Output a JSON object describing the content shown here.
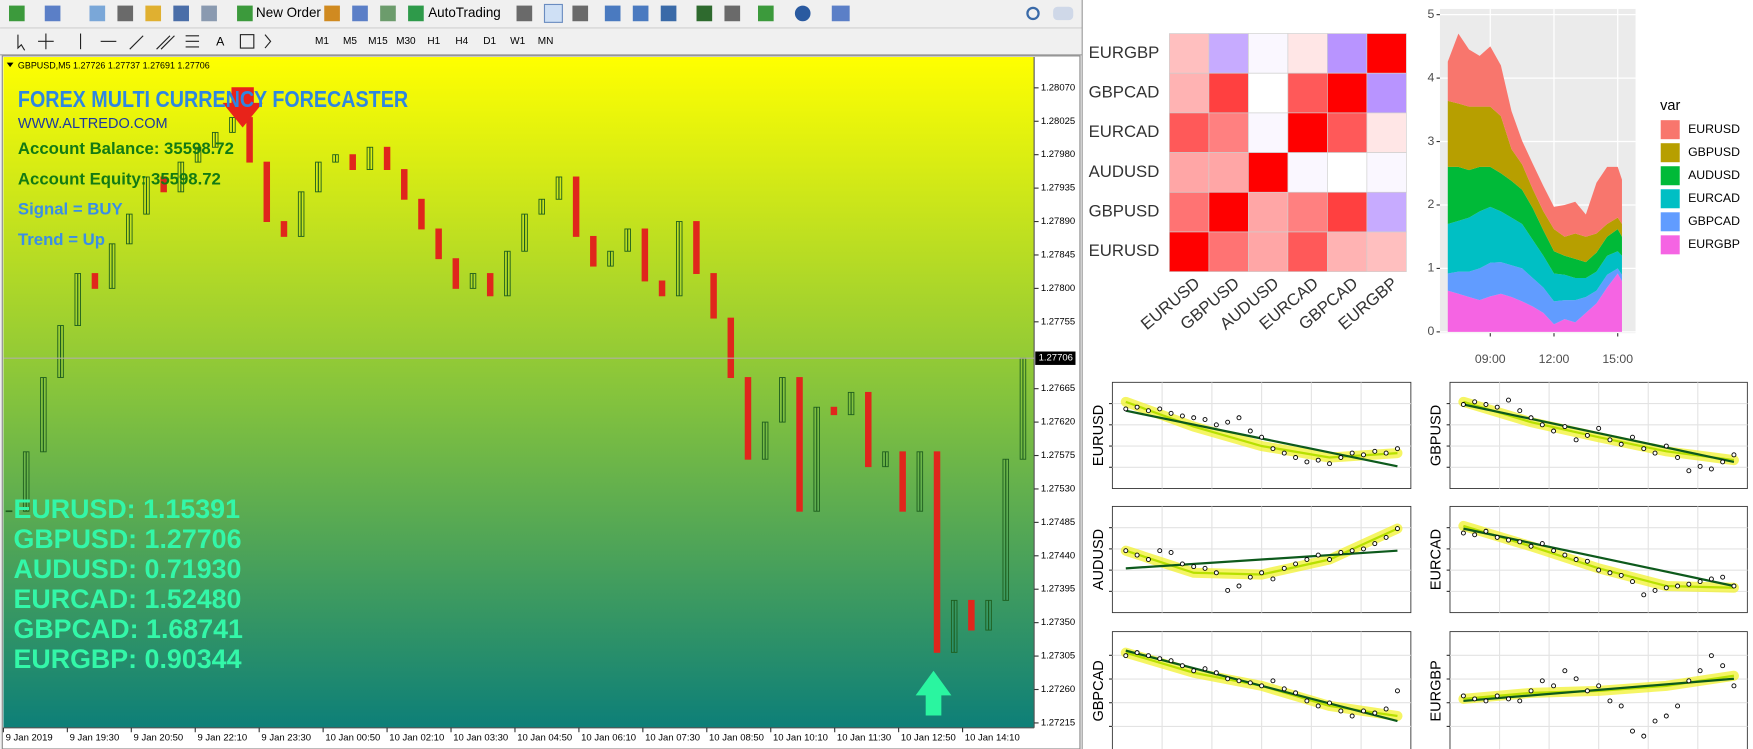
{
  "toolbar": {
    "buttons": [
      "New Order",
      "AutoTrading"
    ],
    "timeframes": [
      "M1",
      "M5",
      "M15",
      "M30",
      "H1",
      "H4",
      "D1",
      "W1",
      "MN"
    ]
  },
  "chart_data": [
    {
      "type": "candlestick",
      "header": "GBPUSD,M5  1.27726 1.27737 1.27691 1.27706",
      "title": "FOREX MULTI CURRENCY FORECASTER",
      "subtitle": "WWW.ALTREDO.COM",
      "annotations": [
        "Account Balance: 35598.72",
        "Account Equity: 35598.72",
        "Signal  = BUY",
        "Trend = Up"
      ],
      "quotes": [
        "EURUSD: 1.15391",
        "GBPUSD: 1.27706",
        "AUDUSD: 0.71930",
        "EURCAD: 1.52480",
        "GBPCAD: 1.68741",
        "EURGBP: 0.90344"
      ],
      "closes": [
        1.275,
        1.2758,
        1.2768,
        1.2775,
        1.2782,
        1.278,
        1.2786,
        1.279,
        1.2795,
        1.2793,
        1.2797,
        1.2799,
        1.2801,
        1.2803,
        1.2797,
        1.2789,
        1.2787,
        1.2793,
        1.2797,
        1.2798,
        1.2796,
        1.2799,
        1.2796,
        1.2792,
        1.2788,
        1.2784,
        1.278,
        1.2782,
        1.2779,
        1.2785,
        1.279,
        1.2792,
        1.2795,
        1.2787,
        1.2783,
        1.2785,
        1.2788,
        1.2781,
        1.2779,
        1.2789,
        1.2782,
        1.2776,
        1.2768,
        1.2757,
        1.2762,
        1.2768,
        1.275,
        1.2764,
        1.2763,
        1.2766,
        1.2756,
        1.2758,
        1.275,
        1.2758,
        1.2731,
        1.2738,
        1.2734,
        1.2738,
        1.2757,
        1.27706
      ],
      "colors": {
        "up": "#1e5e1e",
        "down": "#e0261c"
      },
      "ylim": [
        1.2721,
        1.2811
      ],
      "yticks": [
        {
          "value": 1.2807,
          "label": "1.28070"
        },
        {
          "value": 1.28025,
          "label": "1.28025"
        },
        {
          "value": 1.2798,
          "label": "1.27980"
        },
        {
          "value": 1.27935,
          "label": "1.27935"
        },
        {
          "value": 1.2789,
          "label": "1.27890"
        },
        {
          "value": 1.27845,
          "label": "1.27845"
        },
        {
          "value": 1.278,
          "label": "1.27800"
        },
        {
          "value": 1.27755,
          "label": "1.27755"
        },
        {
          "value": 1.27665,
          "label": "1.27665"
        },
        {
          "value": 1.2762,
          "label": "1.27620"
        },
        {
          "value": 1.27575,
          "label": "1.27575"
        },
        {
          "value": 1.2753,
          "label": "1.27530"
        },
        {
          "value": 1.27485,
          "label": "1.27485"
        },
        {
          "value": 1.2744,
          "label": "1.27440"
        },
        {
          "value": 1.27395,
          "label": "1.27395"
        },
        {
          "value": 1.2735,
          "label": "1.27350"
        },
        {
          "value": 1.27305,
          "label": "1.27305"
        },
        {
          "value": 1.2726,
          "label": "1.27260"
        },
        {
          "value": 1.27215,
          "label": "1.27215"
        }
      ],
      "current_price": {
        "value": 1.27706,
        "label": "1.27706"
      },
      "time_labels": [
        "9 Jan 2019",
        "9 Jan 19:30",
        "9 Jan 20:50",
        "9 Jan 22:10",
        "9 Jan 23:30",
        "10 Jan 00:50",
        "10 Jan 02:10",
        "10 Jan 03:30",
        "10 Jan 04:50",
        "10 Jan 06:10",
        "10 Jan 07:30",
        "10 Jan 08:50",
        "10 Jan 10:10",
        "10 Jan 11:30",
        "10 Jan 12:50",
        "10 Jan 14:10"
      ]
    },
    {
      "type": "heatmap",
      "rows": [
        "EURGBP",
        "GBPCAD",
        "EURCAD",
        "AUDUSD",
        "GBPUSD",
        "EURUSD"
      ],
      "columns": [
        "EURUSD",
        "GBPUSD",
        "AUDUSD",
        "EURCAD",
        "GBPCAD",
        "EURGBP"
      ],
      "values": [
        [
          0.25,
          -0.55,
          -0.05,
          0.1,
          -0.7,
          1
        ],
        [
          0.3,
          0.75,
          0,
          0.65,
          1,
          -0.7
        ],
        [
          0.65,
          0.5,
          -0.05,
          1,
          0.65,
          0.1
        ],
        [
          0.35,
          0.35,
          1,
          -0.05,
          0,
          -0.05
        ],
        [
          0.55,
          1,
          0.35,
          0.5,
          0.75,
          -0.55
        ],
        [
          1,
          0.55,
          0.35,
          0.65,
          0.3,
          0.25
        ]
      ],
      "zlim": [
        -1,
        1
      ],
      "colors": {
        "low": "#9966ff",
        "mid": "#ffffff",
        "high": "#ff0000"
      }
    },
    {
      "type": "area",
      "x": [
        7.0,
        7.5,
        8.0,
        8.5,
        9.0,
        9.5,
        10.0,
        10.5,
        11.0,
        11.5,
        12.0,
        12.5,
        13.0,
        13.5,
        14.0,
        14.5,
        15.0,
        15.2
      ],
      "legend_title": "var",
      "legend": "right",
      "series": [
        {
          "name": "EURUSD",
          "color": "#F8766D",
          "values": [
            0.62,
            1.1,
            0.9,
            0.8,
            0.95,
            0.8,
            0.6,
            0.37,
            0.4,
            0.4,
            0.35,
            0.5,
            0.5,
            0.35,
            0.8,
            0.9,
            0.8,
            0.7
          ]
        },
        {
          "name": "GBPUSD",
          "color": "#B79F00",
          "values": [
            1.04,
            1.0,
            1.0,
            0.95,
            0.95,
            0.9,
            0.5,
            0.4,
            0.3,
            0.3,
            0.35,
            0.3,
            0.4,
            0.4,
            0.3,
            0.2,
            0.18,
            0.2
          ]
        },
        {
          "name": "AUDUSD",
          "color": "#00BA38",
          "values": [
            0.9,
            0.85,
            0.75,
            0.7,
            0.63,
            0.6,
            0.58,
            0.54,
            0.5,
            0.4,
            0.35,
            0.3,
            0.3,
            0.25,
            0.3,
            0.3,
            0.35,
            0.3
          ]
        },
        {
          "name": "EURCAD",
          "color": "#00BFC4",
          "values": [
            0.78,
            0.8,
            0.85,
            0.9,
            0.88,
            0.8,
            0.75,
            0.7,
            0.6,
            0.5,
            0.44,
            0.4,
            0.35,
            0.3,
            0.3,
            0.3,
            0.27,
            0.3
          ]
        },
        {
          "name": "GBPCAD",
          "color": "#619CFF",
          "values": [
            0.27,
            0.35,
            0.4,
            0.5,
            0.53,
            0.5,
            0.5,
            0.52,
            0.45,
            0.4,
            0.36,
            0.3,
            0.35,
            0.25,
            0.2,
            0.2,
            0.08,
            0.1
          ]
        },
        {
          "name": "EURGBP",
          "color": "#F564E3",
          "values": [
            0.65,
            0.6,
            0.55,
            0.5,
            0.56,
            0.6,
            0.55,
            0.48,
            0.4,
            0.3,
            0.12,
            0.2,
            0.15,
            0.3,
            0.45,
            0.7,
            0.92,
            0.8
          ]
        }
      ],
      "xlim": [
        6.63,
        15.84
      ],
      "xticks": [
        {
          "value": 9,
          "label": "09:00"
        },
        {
          "value": 12,
          "label": "12:00"
        },
        {
          "value": 15,
          "label": "15:00"
        }
      ],
      "ylim": [
        -0.02,
        5.09
      ],
      "yticks": [
        0,
        1,
        2,
        3,
        4,
        5
      ]
    },
    {
      "type": "scatter",
      "y_label": "EURUSD",
      "ylim": [
        0,
        1
      ],
      "values": [
        0.8,
        0.82,
        0.78,
        0.8,
        0.75,
        0.72,
        0.7,
        0.68,
        0.62,
        0.65,
        0.7,
        0.55,
        0.48,
        0.35,
        0.3,
        0.25,
        0.2,
        0.22,
        0.18,
        0.25,
        0.3,
        0.28,
        0.32,
        0.3,
        0.35
      ],
      "trend": [
        0.78,
        0.15
      ],
      "smooth": [
        0.88,
        0.6,
        0.38,
        0.25,
        0.3
      ]
    },
    {
      "type": "scatter",
      "y_label": "GBPUSD",
      "ylim": [
        0,
        1
      ],
      "values": [
        0.85,
        0.88,
        0.85,
        0.82,
        0.9,
        0.78,
        0.7,
        0.62,
        0.55,
        0.6,
        0.45,
        0.5,
        0.58,
        0.45,
        0.4,
        0.48,
        0.35,
        0.3,
        0.38,
        0.25,
        0.1,
        0.15,
        0.12,
        0.2,
        0.28
      ],
      "trend": [
        0.85,
        0.2
      ],
      "smooth": [
        0.88,
        0.65,
        0.48,
        0.32,
        0.22
      ]
    },
    {
      "type": "scatter",
      "y_label": "AUDUSD",
      "ylim": [
        0,
        1
      ],
      "values": [
        0.6,
        0.55,
        0.5,
        0.6,
        0.58,
        0.45,
        0.42,
        0.4,
        0.35,
        0.15,
        0.2,
        0.3,
        0.35,
        0.28,
        0.4,
        0.45,
        0.5,
        0.55,
        0.5,
        0.58,
        0.6,
        0.62,
        0.68,
        0.75,
        0.85
      ],
      "trend": [
        0.4,
        0.6
      ],
      "smooth": [
        0.6,
        0.35,
        0.33,
        0.5,
        0.85
      ]
    },
    {
      "type": "scatter",
      "y_label": "EURCAD",
      "ylim": [
        0,
        1
      ],
      "values": [
        0.8,
        0.78,
        0.82,
        0.75,
        0.72,
        0.7,
        0.65,
        0.68,
        0.6,
        0.55,
        0.5,
        0.48,
        0.38,
        0.35,
        0.32,
        0.25,
        0.1,
        0.15,
        0.18,
        0.2,
        0.22,
        0.25,
        0.28,
        0.3,
        0.2
      ],
      "trend": [
        0.85,
        0.2
      ],
      "smooth": [
        0.88,
        0.65,
        0.4,
        0.2,
        0.18
      ]
    },
    {
      "type": "scatter",
      "y_label": "GBPCAD",
      "ylim": [
        0,
        1
      ],
      "values": [
        0.85,
        0.88,
        0.85,
        0.82,
        0.8,
        0.75,
        0.7,
        0.72,
        0.68,
        0.62,
        0.6,
        0.58,
        0.55,
        0.6,
        0.52,
        0.48,
        0.4,
        0.35,
        0.38,
        0.3,
        0.25,
        0.3,
        0.28,
        0.32,
        0.5
      ],
      "trend": [
        0.9,
        0.2
      ],
      "smooth": [
        0.88,
        0.68,
        0.55,
        0.35,
        0.25
      ]
    },
    {
      "type": "scatter",
      "y_label": "EURGBP",
      "ylim": [
        0,
        1
      ],
      "values": [
        0.45,
        0.42,
        0.4,
        0.45,
        0.42,
        0.4,
        0.5,
        0.6,
        0.55,
        0.7,
        0.62,
        0.5,
        0.55,
        0.4,
        0.35,
        0.1,
        0.05,
        0.2,
        0.25,
        0.35,
        0.6,
        0.7,
        0.85,
        0.75,
        0.55
      ],
      "trend": [
        0.4,
        0.62
      ],
      "smooth": [
        0.42,
        0.48,
        0.5,
        0.55,
        0.65
      ]
    }
  ]
}
